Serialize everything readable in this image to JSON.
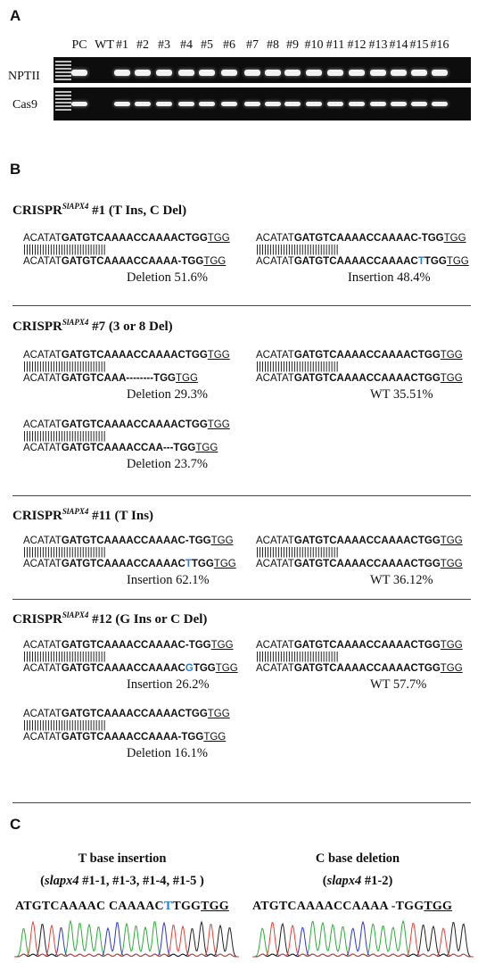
{
  "panels": {
    "a": "A",
    "b": "B",
    "c": "C"
  },
  "gel": {
    "lanes": [
      "PC",
      "WT",
      "#1",
      "#2",
      "#3",
      "#4",
      "#5",
      "#6",
      "#7",
      "#8",
      "#9",
      "#10",
      "#11",
      "#12",
      "#13",
      "#14",
      "#15",
      "#16"
    ],
    "rows": [
      "NPTII",
      "Cas9"
    ]
  },
  "sections": [
    {
      "title_prefix": "CRISPR",
      "title_sup": "SlAPX4",
      "title_suffix": " #1 (T Ins, C Del)",
      "alignments": [
        {
          "top_pre": "ACATAT",
          "top_bold": "GATGTCAAAACCAAAACTGG",
          "top_pam": "TGG",
          "bars": "|||||||||||||||||||||||||||||||",
          "bot_pre": "ACATAT",
          "bot_bold": "GATGTCAAAACCAAAA-TGG",
          "bot_pam": "TGG",
          "label": "Deletion 51.6%"
        },
        {
          "top_pre": "ACATAT",
          "top_bold": "GATGTCAAAACCAAAAC-TGG",
          "top_pam": "TGG",
          "bars": "|||||||||||||||||||||||||||||||",
          "bot_pre": "ACATAT",
          "bot_bold_a": "GATGTCAAAACCAAAAC",
          "bot_ins": "T",
          "bot_bold_b": "TGG",
          "bot_pam": "TGG",
          "label": "Insertion 48.4%"
        }
      ]
    },
    {
      "title_prefix": "CRISPR",
      "title_sup": "SlAPX4",
      "title_suffix": " #7 (3 or 8 Del)",
      "alignments": [
        {
          "top_pre": "ACATAT",
          "top_bold": "GATGTCAAAACCAAAACTGG",
          "top_pam": "TGG",
          "bars": "|||||||||||||||||||||||||||||||",
          "bot_pre": "ACATAT",
          "bot_bold": "GATGTCAAA--------TGG",
          "bot_pam": "TGG",
          "label": "Deletion 29.3%"
        },
        {
          "top_pre": "ACATAT",
          "top_bold": "GATGTCAAAACCAAAACTGG",
          "top_pam": "TGG",
          "bars": "|||||||||||||||||||||||||||||||",
          "bot_pre": "ACATAT",
          "bot_bold": "GATGTCAAAACCAAAACTGG",
          "bot_pam": "TGG",
          "label": "WT 35.51%"
        },
        {
          "top_pre": "ACATAT",
          "top_bold": "GATGTCAAAACCAAAACTGG",
          "top_pam": "TGG",
          "bars": "|||||||||||||||||||||||||||||||",
          "bot_pre": "ACATAT",
          "bot_bold": "GATGTCAAAACCAA---TGG",
          "bot_pam": "TGG",
          "label": "Deletion 23.7%"
        }
      ]
    },
    {
      "title_prefix": "CRISPR",
      "title_sup": "SlAPX4",
      "title_suffix": " #11 (T Ins)",
      "alignments": [
        {
          "top_pre": "ACATAT",
          "top_bold": "GATGTCAAAACCAAAAC-TGG",
          "top_pam": "TGG",
          "bars": "|||||||||||||||||||||||||||||||",
          "bot_pre": "ACATAT",
          "bot_bold_a": "GATGTCAAAACCAAAAC",
          "bot_ins": "T",
          "bot_bold_b": "TGG",
          "bot_pam": "TGG",
          "label": "Insertion 62.1%"
        },
        {
          "top_pre": "ACATAT",
          "top_bold": "GATGTCAAAACCAAAACTGG",
          "top_pam": "TGG",
          "bars": "|||||||||||||||||||||||||||||||",
          "bot_pre": "ACATAT",
          "bot_bold": "GATGTCAAAACCAAAACTGG",
          "bot_pam": "TGG",
          "label": "WT 36.12%"
        }
      ]
    },
    {
      "title_prefix": "CRISPR",
      "title_sup": "SlAPX4",
      "title_suffix": " #12 (G Ins or C Del)",
      "alignments": [
        {
          "top_pre": "ACATAT",
          "top_bold": "GATGTCAAAACCAAAAC-TGG",
          "top_pam": "TGG",
          "bars": "|||||||||||||||||||||||||||||||",
          "bot_pre": "ACATAT",
          "bot_bold_a": "GATGTCAAAACCAAAAC",
          "bot_ins": "G",
          "bot_bold_b": "TGG",
          "bot_pam": "TGG",
          "label": "Insertion 26.2%"
        },
        {
          "top_pre": "ACATAT",
          "top_bold": "GATGTCAAAACCAAAACTGG",
          "top_pam": "TGG",
          "bars": "|||||||||||||||||||||||||||||||",
          "bot_pre": "ACATAT",
          "bot_bold": "GATGTCAAAACCAAAACTGG",
          "bot_pam": "TGG",
          "label": "WT 57.7%"
        },
        {
          "top_pre": "ACATAT",
          "top_bold": "GATGTCAAAACCAAAACTGG",
          "top_pam": "TGG",
          "bars": "|||||||||||||||||||||||||||||||",
          "bot_pre": "ACATAT",
          "bot_bold": "GATGTCAAAACCAAAA-TGG",
          "bot_pam": "TGG",
          "label": "Deletion 16.1%"
        }
      ]
    }
  ],
  "panel_c": {
    "left": {
      "title": "T base insertion",
      "subtitle_pre": "(",
      "subtitle_italic": "slapx4",
      "subtitle_post": " #1-1, #1-3, #1-4, #1-5 )",
      "seq_a": "ATGTCAAAAC CAAAAC",
      "seq_ins": "T",
      "seq_b": "TGG",
      "seq_pam": "TGG"
    },
    "right": {
      "title": "C base  deletion",
      "subtitle_pre": "(",
      "subtitle_italic": "slapx4",
      "subtitle_post": " #1-2)",
      "seq_a": "ATGTCAAAACCAAAA -TGG",
      "seq_pam": "TGG"
    },
    "trace_colors": {
      "A": "#2eab3a",
      "C": "#2f37c9",
      "G": "#222222",
      "T": "#e0443a"
    }
  }
}
